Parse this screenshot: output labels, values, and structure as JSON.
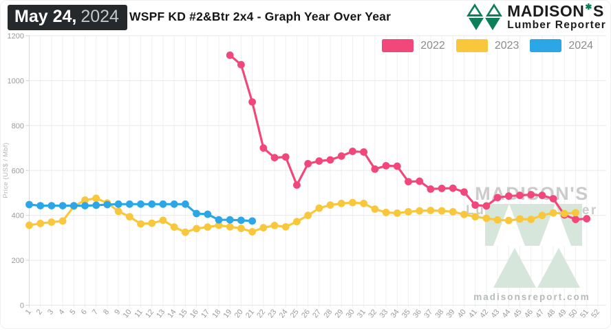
{
  "header": {
    "date_bold": "May 24,",
    "date_year": "2024",
    "title": "WSPF KD #2&Btr 2x4 - Graph Year Over Year",
    "logo": {
      "name_before_leaf": "MADISON",
      "name_after_leaf": "S",
      "leaf_glyph": "✱",
      "subtitle": "Lumber Reporter",
      "green": "#0d7f58"
    }
  },
  "watermark": {
    "line1": "MADISON'S",
    "line2": "Lumber Reporter",
    "site": "madisonsreport.com",
    "text_color": "#cbcbcb",
    "tree_color": "#d7e6db"
  },
  "chart_data": {
    "type": "line",
    "title": "WSPF KD #2&Btr 2x4 - Graph Year Over Year",
    "xlabel": "",
    "ylabel": "Price (US$ / Mbf)",
    "ylim": [
      0,
      1200
    ],
    "yticks": [
      0,
      200,
      400,
      600,
      800,
      1000,
      1200
    ],
    "x_ticks": [
      1,
      2,
      3,
      4,
      5,
      6,
      7,
      8,
      9,
      10,
      11,
      12,
      13,
      14,
      15,
      16,
      17,
      18,
      19,
      20,
      21,
      22,
      23,
      24,
      25,
      26,
      27,
      28,
      29,
      30,
      31,
      32,
      33,
      34,
      35,
      36,
      37,
      38,
      39,
      40,
      41,
      42,
      43,
      44,
      45,
      46,
      47,
      48,
      49,
      50,
      51,
      52
    ],
    "grid": true,
    "legend_position": "top-right",
    "series": [
      {
        "name": "2022",
        "color": "#F2477B",
        "start_week": 19,
        "values": [
          1113,
          1071,
          905,
          700,
          657,
          660,
          535,
          630,
          642,
          647,
          664,
          685,
          682,
          606,
          621,
          619,
          550,
          552,
          517,
          520,
          521,
          504,
          446,
          442,
          479,
          486,
          489,
          492,
          489,
          474,
          402,
          382,
          385
        ]
      },
      {
        "name": "2023",
        "color": "#F9C73B",
        "start_week": 1,
        "values": [
          356,
          364,
          370,
          375,
          440,
          468,
          476,
          455,
          418,
          394,
          362,
          365,
          378,
          348,
          325,
          341,
          348,
          356,
          349,
          342,
          327,
          345,
          355,
          349,
          372,
          400,
          432,
          446,
          453,
          457,
          453,
          428,
          413,
          410,
          416,
          420,
          422,
          420,
          416,
          404,
          394,
          387,
          380,
          377,
          384,
          382,
          400,
          411,
          408,
          412
        ]
      },
      {
        "name": "2024",
        "color": "#2BA7E8",
        "start_week": 1,
        "values": [
          448,
          443,
          443,
          443,
          443,
          443,
          445,
          448,
          450,
          450,
          450,
          450,
          450,
          450,
          450,
          408,
          405,
          380,
          380,
          378,
          375
        ]
      }
    ]
  }
}
